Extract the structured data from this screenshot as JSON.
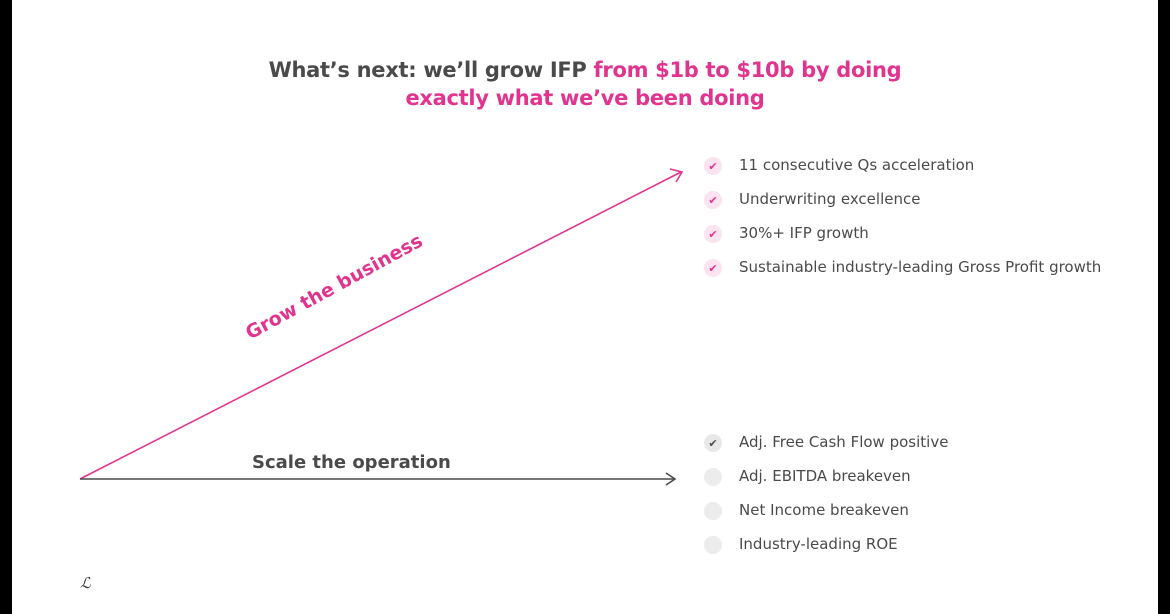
{
  "title": {
    "part1": "What’s next: we’ll grow IFP ",
    "part2": "from $1b to $10b by doing",
    "part3": "exactly what we’ve been doing"
  },
  "arrows": {
    "grow_label": "Grow the business",
    "scale_label": "Scale the operation"
  },
  "grow_items": [
    {
      "label": "11 consecutive Qs acceleration",
      "checked": true
    },
    {
      "label": "Underwriting excellence",
      "checked": true
    },
    {
      "label": "30%+ IFP growth",
      "checked": true
    },
    {
      "label": "Sustainable industry-leading Gross Profit growth",
      "checked": true
    }
  ],
  "scale_items": [
    {
      "label": "Adj. Free Cash Flow positive",
      "checked": true
    },
    {
      "label": "Adj. EBITDA breakeven",
      "checked": false
    },
    {
      "label": "Net Income breakeven",
      "checked": false
    },
    {
      "label": "Industry-leading ROE",
      "checked": false
    }
  ],
  "logo": "ℒ",
  "colors": {
    "accent": "#e0348f",
    "text": "#4a4a4a",
    "check_pink_bg": "#fbe3ef",
    "check_grey_bg": "#e8e8e8"
  },
  "icons": {
    "checked": "check-icon",
    "unchecked": "empty-circle-icon"
  }
}
